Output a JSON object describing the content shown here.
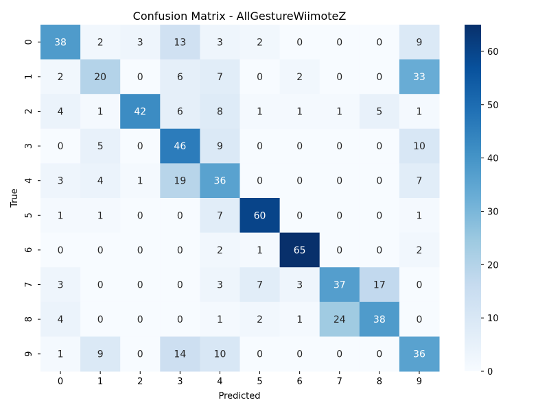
{
  "chart_data": {
    "type": "heatmap",
    "title": "Confusion Matrix - AllGestureWiimoteZ",
    "xlabel": "Predicted",
    "ylabel": "True",
    "x_categories": [
      "0",
      "1",
      "2",
      "3",
      "4",
      "5",
      "6",
      "7",
      "8",
      "9"
    ],
    "y_categories": [
      "0",
      "1",
      "2",
      "3",
      "4",
      "5",
      "6",
      "7",
      "8",
      "9"
    ],
    "matrix": [
      [
        38,
        2,
        3,
        13,
        3,
        2,
        0,
        0,
        0,
        9
      ],
      [
        2,
        20,
        0,
        6,
        7,
        0,
        2,
        0,
        0,
        33
      ],
      [
        4,
        1,
        42,
        6,
        8,
        1,
        1,
        1,
        5,
        1
      ],
      [
        0,
        5,
        0,
        46,
        9,
        0,
        0,
        0,
        0,
        10
      ],
      [
        3,
        4,
        1,
        19,
        36,
        0,
        0,
        0,
        0,
        7
      ],
      [
        1,
        1,
        0,
        0,
        7,
        60,
        0,
        0,
        0,
        1
      ],
      [
        0,
        0,
        0,
        0,
        2,
        1,
        65,
        0,
        0,
        2
      ],
      [
        3,
        0,
        0,
        0,
        3,
        7,
        3,
        37,
        17,
        0
      ],
      [
        4,
        0,
        0,
        0,
        1,
        2,
        1,
        24,
        38,
        0
      ],
      [
        1,
        9,
        0,
        14,
        10,
        0,
        0,
        0,
        0,
        36
      ]
    ],
    "colorbar": {
      "colormap": "Blues",
      "range": [
        0,
        65
      ],
      "ticks": [
        "0",
        "10",
        "20",
        "30",
        "40",
        "50",
        "60"
      ]
    }
  }
}
